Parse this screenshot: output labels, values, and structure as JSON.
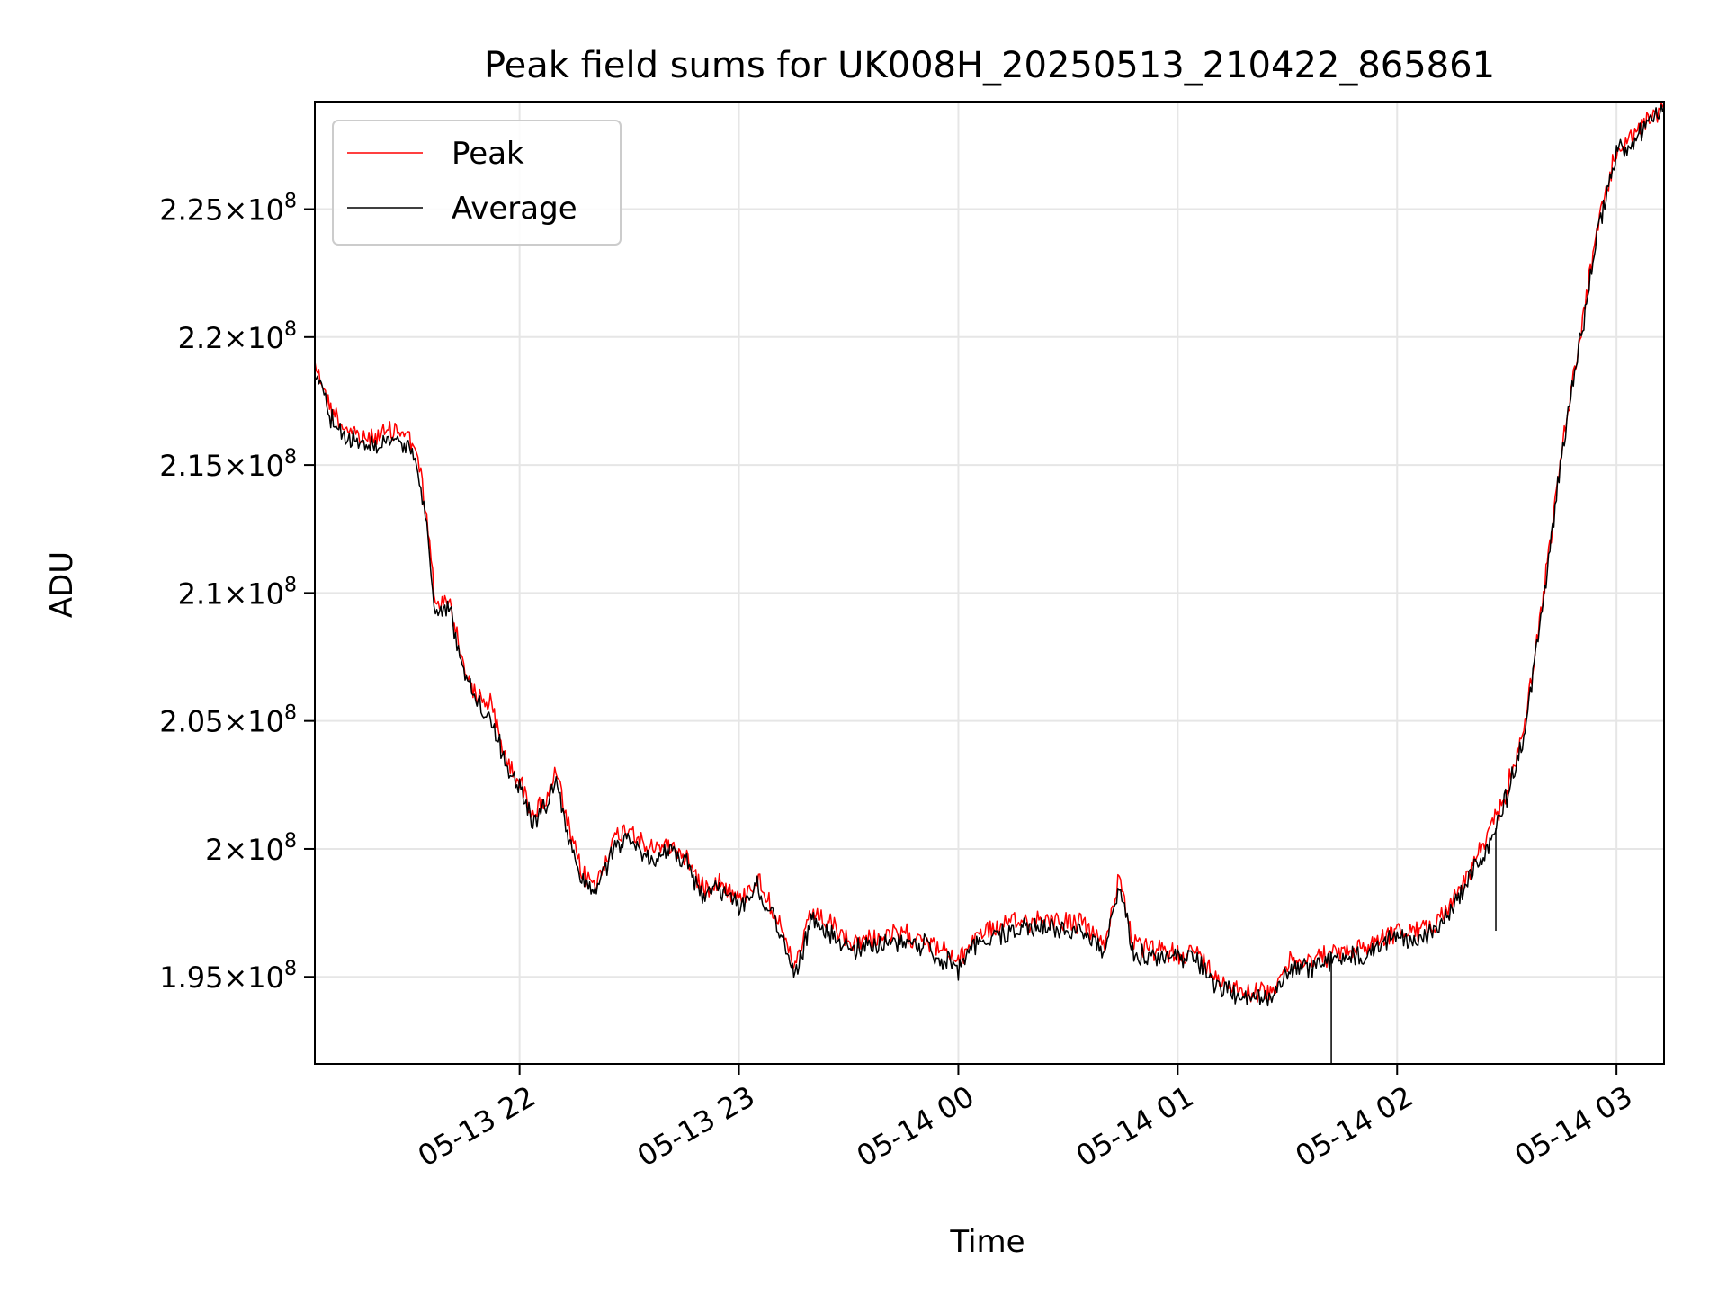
{
  "chart_data": {
    "type": "line",
    "title": "Peak field sums for UK008H_20250513_210422_865861",
    "xlabel": "Time",
    "ylabel": "ADU",
    "x_range": [
      "2025-05-13 21:04",
      "2025-05-14 03:13"
    ],
    "ylim": [
      191600000,
      229200000
    ],
    "grid": true,
    "legend_position": "top-left",
    "x_ticks": [
      {
        "value": "2025-05-13 22:00",
        "label": "05-13 22"
      },
      {
        "value": "2025-05-13 23:00",
        "label": "05-13 23"
      },
      {
        "value": "2025-05-14 00:00",
        "label": "05-14 00"
      },
      {
        "value": "2025-05-14 01:00",
        "label": "05-14 01"
      },
      {
        "value": "2025-05-14 02:00",
        "label": "05-14 02"
      },
      {
        "value": "2025-05-14 03:00",
        "label": "05-14 03"
      }
    ],
    "y_ticks": [
      {
        "value": 195000000,
        "mantissa": "1.95",
        "exponent": "8"
      },
      {
        "value": 200000000,
        "mantissa": "2",
        "exponent": "8"
      },
      {
        "value": 205000000,
        "mantissa": "2.05",
        "exponent": "8"
      },
      {
        "value": 210000000,
        "mantissa": "2.1",
        "exponent": "8"
      },
      {
        "value": 215000000,
        "mantissa": "2.15",
        "exponent": "8"
      },
      {
        "value": 220000000,
        "mantissa": "2.2",
        "exponent": "8"
      },
      {
        "value": 225000000,
        "mantissa": "2.25",
        "exponent": "8"
      }
    ],
    "series": [
      {
        "name": "Peak",
        "color": "#ff0000",
        "points": [
          [
            "2025-05-13 21:04",
            219100000
          ],
          [
            "2025-05-13 21:08",
            217300000
          ],
          [
            "2025-05-13 21:12",
            216500000
          ],
          [
            "2025-05-13 21:17",
            216000000
          ],
          [
            "2025-05-13 21:22",
            216200000
          ],
          [
            "2025-05-13 21:27",
            216400000
          ],
          [
            "2025-05-13 21:31",
            215900000
          ],
          [
            "2025-05-13 21:33",
            214500000
          ],
          [
            "2025-05-13 21:35",
            212500000
          ],
          [
            "2025-05-13 21:37",
            209500000
          ],
          [
            "2025-05-13 21:41",
            209700000
          ],
          [
            "2025-05-13 21:44",
            207500000
          ],
          [
            "2025-05-13 21:48",
            206000000
          ],
          [
            "2025-05-13 21:52",
            205700000
          ],
          [
            "2025-05-13 21:56",
            203600000
          ],
          [
            "2025-05-13 22:00",
            202600000
          ],
          [
            "2025-05-13 22:04",
            201400000
          ],
          [
            "2025-05-13 22:08",
            202100000
          ],
          [
            "2025-05-13 22:10",
            203000000
          ],
          [
            "2025-05-13 22:13",
            201000000
          ],
          [
            "2025-05-13 22:17",
            199000000
          ],
          [
            "2025-05-13 22:21",
            198600000
          ],
          [
            "2025-05-13 22:25",
            200200000
          ],
          [
            "2025-05-13 22:30",
            200900000
          ],
          [
            "2025-05-13 22:35",
            199900000
          ],
          [
            "2025-05-13 22:40",
            200200000
          ],
          [
            "2025-05-13 22:45",
            199800000
          ],
          [
            "2025-05-13 22:50",
            198500000
          ],
          [
            "2025-05-13 22:55",
            198800000
          ],
          [
            "2025-05-13 23:00",
            198000000
          ],
          [
            "2025-05-13 23:05",
            198800000
          ],
          [
            "2025-05-13 23:10",
            197500000
          ],
          [
            "2025-05-13 23:15",
            195300000
          ],
          [
            "2025-05-13 23:20",
            197500000
          ],
          [
            "2025-05-13 23:25",
            197000000
          ],
          [
            "2025-05-13 23:30",
            196300000
          ],
          [
            "2025-05-13 23:40",
            196600000
          ],
          [
            "2025-05-13 23:50",
            196600000
          ],
          [
            "2025-05-13 23:55",
            196100000
          ],
          [
            "2025-05-14 00:00",
            195600000
          ],
          [
            "2025-05-14 00:05",
            196700000
          ],
          [
            "2025-05-14 00:15",
            197100000
          ],
          [
            "2025-05-14 00:25",
            197300000
          ],
          [
            "2025-05-14 00:35",
            197000000
          ],
          [
            "2025-05-14 00:40",
            196200000
          ],
          [
            "2025-05-14 00:44",
            199000000
          ],
          [
            "2025-05-14 00:48",
            196200000
          ],
          [
            "2025-05-14 00:55",
            196000000
          ],
          [
            "2025-05-14 01:00",
            195900000
          ],
          [
            "2025-05-14 01:05",
            196000000
          ],
          [
            "2025-05-14 01:10",
            195000000
          ],
          [
            "2025-05-14 01:15",
            194700000
          ],
          [
            "2025-05-14 01:20",
            194400000
          ],
          [
            "2025-05-14 01:25",
            194400000
          ],
          [
            "2025-05-14 01:30",
            195500000
          ],
          [
            "2025-05-14 01:35",
            195600000
          ],
          [
            "2025-05-14 01:40",
            195800000
          ],
          [
            "2025-05-14 01:50",
            196100000
          ],
          [
            "2025-05-14 01:55",
            196500000
          ],
          [
            "2025-05-14 02:00",
            196800000
          ],
          [
            "2025-05-14 02:05",
            196700000
          ],
          [
            "2025-05-14 02:10",
            197100000
          ],
          [
            "2025-05-14 02:15",
            197900000
          ],
          [
            "2025-05-14 02:20",
            199200000
          ],
          [
            "2025-05-14 02:25",
            200500000
          ],
          [
            "2025-05-14 02:30",
            202300000
          ],
          [
            "2025-05-14 02:35",
            204900000
          ],
          [
            "2025-05-14 02:40",
            210000000
          ],
          [
            "2025-05-14 02:45",
            215500000
          ],
          [
            "2025-05-14 02:50",
            220000000
          ],
          [
            "2025-05-14 02:55",
            224400000
          ],
          [
            "2025-05-14 03:00",
            227300000
          ],
          [
            "2025-05-14 03:05",
            227900000
          ],
          [
            "2025-05-14 03:13",
            229100000
          ]
        ]
      },
      {
        "name": "Average",
        "color": "#000000",
        "points": [
          [
            "2025-05-13 21:04",
            218700000
          ],
          [
            "2025-05-13 21:08",
            217000000
          ],
          [
            "2025-05-13 21:12",
            216100000
          ],
          [
            "2025-05-13 21:17",
            215700000
          ],
          [
            "2025-05-13 21:22",
            215800000
          ],
          [
            "2025-05-13 21:27",
            216000000
          ],
          [
            "2025-05-13 21:31",
            215500000
          ],
          [
            "2025-05-13 21:33",
            214100000
          ],
          [
            "2025-05-13 21:35",
            212100000
          ],
          [
            "2025-05-13 21:37",
            209200000
          ],
          [
            "2025-05-13 21:41",
            209400000
          ],
          [
            "2025-05-13 21:44",
            207200000
          ],
          [
            "2025-05-13 21:48",
            205700000
          ],
          [
            "2025-05-13 21:52",
            205300000
          ],
          [
            "2025-05-13 21:56",
            203300000
          ],
          [
            "2025-05-13 22:00",
            202300000
          ],
          [
            "2025-05-13 22:04",
            201100000
          ],
          [
            "2025-05-13 22:08",
            201800000
          ],
          [
            "2025-05-13 22:10",
            202600000
          ],
          [
            "2025-05-13 22:13",
            200600000
          ],
          [
            "2025-05-13 22:17",
            198700000
          ],
          [
            "2025-05-13 22:21",
            198300000
          ],
          [
            "2025-05-13 22:25",
            199800000
          ],
          [
            "2025-05-13 22:30",
            200500000
          ],
          [
            "2025-05-13 22:35",
            199600000
          ],
          [
            "2025-05-13 22:40",
            199900000
          ],
          [
            "2025-05-13 22:45",
            199500000
          ],
          [
            "2025-05-13 22:50",
            198200000
          ],
          [
            "2025-05-13 22:55",
            198500000
          ],
          [
            "2025-05-13 23:00",
            197700000
          ],
          [
            "2025-05-13 23:05",
            198500000
          ],
          [
            "2025-05-13 23:10",
            197200000
          ],
          [
            "2025-05-13 23:15",
            195000000
          ],
          [
            "2025-05-13 23:20",
            197200000
          ],
          [
            "2025-05-13 23:25",
            196700000
          ],
          [
            "2025-05-13 23:30",
            196000000
          ],
          [
            "2025-05-13 23:40",
            196300000
          ],
          [
            "2025-05-13 23:50",
            196300000
          ],
          [
            "2025-05-13 23:55",
            195800000
          ],
          [
            "2025-05-14 00:00",
            195300000
          ],
          [
            "2025-05-14 00:05",
            196400000
          ],
          [
            "2025-05-14 00:15",
            196800000
          ],
          [
            "2025-05-14 00:25",
            197000000
          ],
          [
            "2025-05-14 00:35",
            196700000
          ],
          [
            "2025-05-14 00:40",
            195900000
          ],
          [
            "2025-05-14 00:44",
            198600000
          ],
          [
            "2025-05-14 00:48",
            195900000
          ],
          [
            "2025-05-14 00:55",
            195700000
          ],
          [
            "2025-05-14 01:00",
            195600000
          ],
          [
            "2025-05-14 01:05",
            195700000
          ],
          [
            "2025-05-14 01:10",
            194700000
          ],
          [
            "2025-05-14 01:15",
            194400000
          ],
          [
            "2025-05-14 01:20",
            194100000
          ],
          [
            "2025-05-14 01:25",
            194100000
          ],
          [
            "2025-05-14 01:30",
            195200000
          ],
          [
            "2025-05-14 01:35",
            195300000
          ],
          [
            "2025-05-14 01:40",
            195500000
          ],
          [
            "2025-05-14 01:50",
            195800000
          ],
          [
            "2025-05-14 01:55",
            196200000
          ],
          [
            "2025-05-14 02:00",
            196500000
          ],
          [
            "2025-05-14 02:05",
            196400000
          ],
          [
            "2025-05-14 02:10",
            196800000
          ],
          [
            "2025-05-14 02:15",
            197600000
          ],
          [
            "2025-05-14 02:20",
            198900000
          ],
          [
            "2025-05-14 02:25",
            200200000
          ],
          [
            "2025-05-14 02:30",
            202000000
          ],
          [
            "2025-05-14 02:35",
            204600000
          ],
          [
            "2025-05-14 02:40",
            209700000
          ],
          [
            "2025-05-14 02:45",
            215300000
          ],
          [
            "2025-05-14 02:50",
            219800000
          ],
          [
            "2025-05-14 02:55",
            224200000
          ],
          [
            "2025-05-14 03:00",
            227200000
          ],
          [
            "2025-05-14 03:05",
            227800000
          ],
          [
            "2025-05-14 03:13",
            229000000
          ]
        ],
        "spikes": [
          [
            "2025-05-14 01:42",
            191600000
          ],
          [
            "2025-05-14 02:27",
            196800000
          ]
        ]
      }
    ]
  }
}
